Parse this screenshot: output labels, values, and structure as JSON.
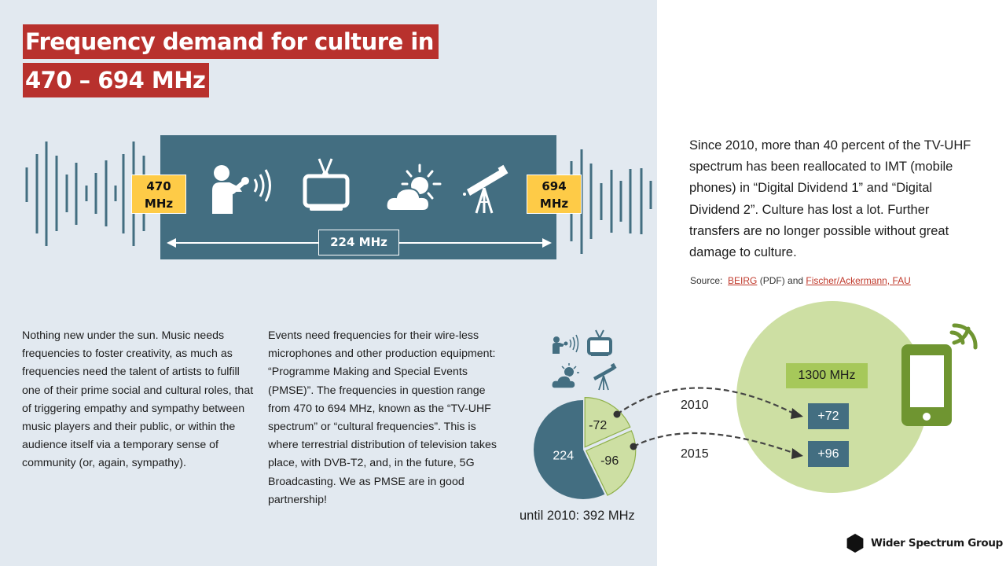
{
  "title": {
    "line1": "Frequency demand for culture in",
    "line2": "470 – 694 MHz"
  },
  "band": {
    "low_label_num": "470",
    "low_label_unit": "MHz",
    "high_label_num": "694",
    "high_label_unit": "MHz",
    "bandwidth_label": "224 MHz",
    "icons": [
      "wireless-microphone-icon",
      "tv-icon",
      "weather-icon",
      "telescope-icon"
    ]
  },
  "columns": {
    "left": "Nothing new under the sun. Music needs frequencies to foster creativity, as much as frequencies need the talent of artists to fulfill one of their prime social and cultural roles, that of triggering empathy and sympathy between music players and their public, or within the audience itself via a temporary sense of community (or, again, sympathy).",
    "middle": "Events need frequencies for their wire-less microphones and other production equipment: “Programme Making and Special Events (PMSE)”. The frequencies in question range from 470 to 694 MHz, known as the “TV-UHF spectrum” or “cultural frequencies”. This is where terrestrial distribution of television takes place, with DVB-T2, and, in the future, 5G Broadcasting. We as PMSE are in good partnership!"
  },
  "summary": {
    "text": "Since 2010, more than 40 percent of the TV-UHF spectrum has been reallocated to IMT (mobile phones) in “Digital Dividend 1” and “Digital Dividend 2”. Culture has lost a lot. Further transfers are no longer possible without great damage to culture.",
    "source_prefix": "Source:",
    "source_link1": "BEIRG",
    "source_middle": "(PDF) and",
    "source_link2": "Fischer/Ackermann, FAU"
  },
  "chart_data": {
    "type": "pie",
    "title": "until 2010: 392 MHz",
    "total": 392,
    "slices": [
      {
        "label": "224",
        "value": 224,
        "color": "#436e81"
      },
      {
        "label": "-72",
        "value": 72,
        "color": "#cddfa3"
      },
      {
        "label": "-96",
        "value": 96,
        "color": "#cddfa3"
      }
    ],
    "transfers": [
      {
        "year": "2010",
        "from_label": "-72",
        "to_label": "+72"
      },
      {
        "year": "2015",
        "from_label": "-96",
        "to_label": "+96"
      }
    ],
    "imt_total_label": "1300 MHz"
  },
  "colors": {
    "accent_red": "#b8312d",
    "band_blue": "#436e81",
    "tag_yellow": "#fecb47",
    "imt_green": "#cddfa3",
    "phone_green": "#6f9531"
  },
  "logo": {
    "text": "Wider Spectrum Group"
  }
}
